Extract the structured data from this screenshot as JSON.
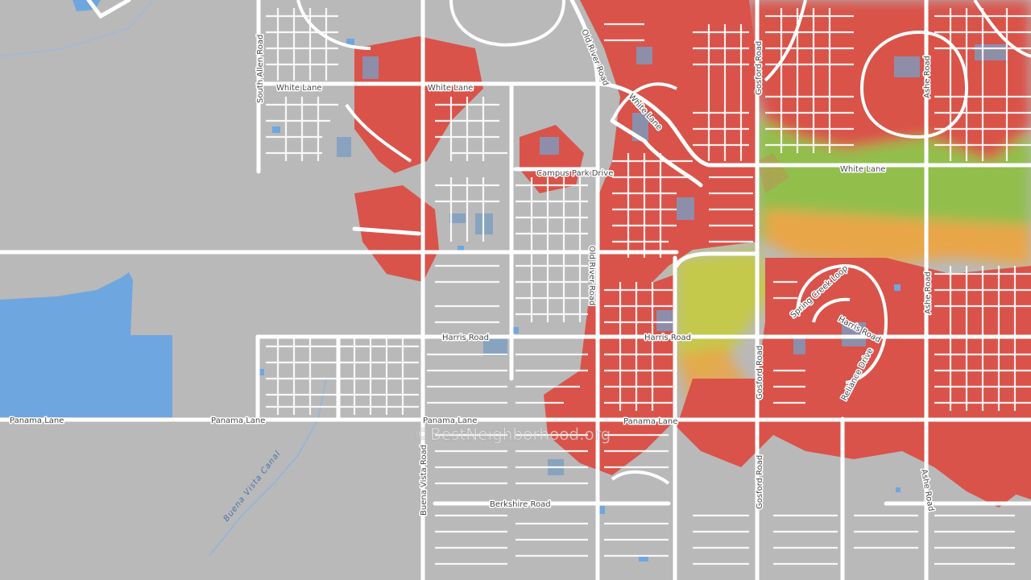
{
  "watermark": "©BestNeighborhood.org",
  "colors": {
    "background": "#b9b9b9",
    "road": "#ffffff",
    "water": "#6ea6e0",
    "heat_high": "#d9534a",
    "heat_mid": "#e9a64a",
    "heat_low": "#c4c94c",
    "heat_green": "#8fbf47"
  },
  "road_labels": {
    "white_lane_west": "White Lane",
    "white_lane_mid": "White Lane",
    "white_lane_diag": "White Lane",
    "white_lane_east": "White Lane",
    "south_allen_road": "South Allen Road",
    "old_river_road_north": "Old River Road",
    "old_river_road_south": "Old River Road",
    "gosford_road_north": "Gosford Road",
    "gosford_road_mid": "Gosford Road",
    "gosford_road_south": "Gosford Road",
    "ashe_road_north": "Ashe Road",
    "ashe_road_mid": "Ashe Road",
    "ashe_road_south": "Ashe Road",
    "campus_park_drive": "Campus Park Drive",
    "harris_road_west": "Harris Road",
    "harris_road_mid": "Harris Road",
    "harris_road_east": "Harris Road",
    "spring_creek_loop": "Spring Creek Loop",
    "reliance_drive": "Reliance Drive",
    "panama_lane_1": "Panama Lane",
    "panama_lane_2": "Panama Lane",
    "panama_lane_3": "Panama Lane",
    "panama_lane_4": "Panama Lane",
    "buena_vista_road": "Buena Vista Road",
    "berkshire_road": "Berkshire Road",
    "buena_vista_canal": "Buena Vista Canal"
  }
}
